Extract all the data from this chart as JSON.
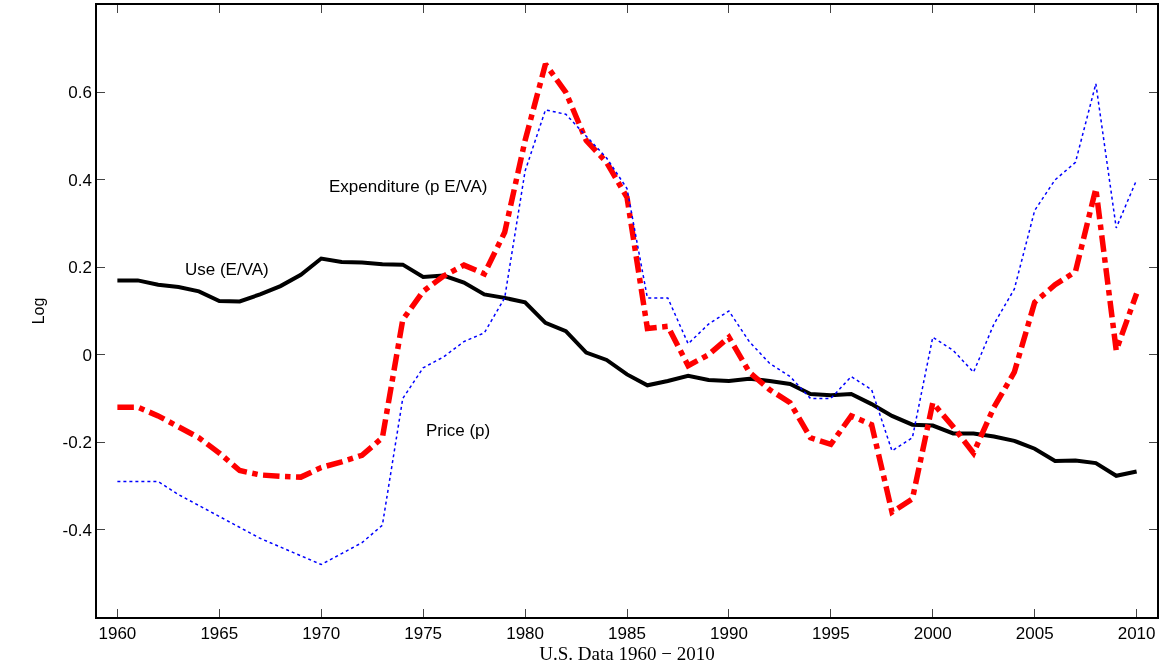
{
  "chart_data": {
    "type": "line",
    "xlabel": "U.S. Data 1960 − 2010",
    "ylabel": "Log",
    "x": [
      1960,
      1961,
      1962,
      1963,
      1964,
      1965,
      1966,
      1967,
      1968,
      1969,
      1970,
      1971,
      1972,
      1973,
      1974,
      1975,
      1976,
      1977,
      1978,
      1979,
      1980,
      1981,
      1982,
      1983,
      1984,
      1985,
      1986,
      1987,
      1988,
      1989,
      1990,
      1991,
      1992,
      1993,
      1994,
      1995,
      1996,
      1997,
      1998,
      1999,
      2000,
      2001,
      2002,
      2003,
      2004,
      2005,
      2006,
      2007,
      2008,
      2009,
      2010
    ],
    "series": [
      {
        "name": "Use (E/VA)",
        "color": "#000000",
        "line_style": "solid",
        "values": [
          0.17,
          0.17,
          0.16,
          0.155,
          0.145,
          0.123,
          0.122,
          0.138,
          0.157,
          0.183,
          0.22,
          0.212,
          0.211,
          0.207,
          0.206,
          0.178,
          0.181,
          0.165,
          0.138,
          0.13,
          0.12,
          0.073,
          0.054,
          0.005,
          -0.012,
          -0.045,
          -0.07,
          -0.06,
          -0.048,
          -0.058,
          -0.06,
          -0.055,
          -0.06,
          -0.067,
          -0.09,
          -0.093,
          -0.09,
          -0.113,
          -0.14,
          -0.16,
          -0.162,
          -0.18,
          -0.18,
          -0.187,
          -0.197,
          -0.215,
          -0.243,
          -0.242,
          -0.248,
          -0.277,
          -0.267
        ]
      },
      {
        "name": "Expenditure (p E/VA)",
        "color": "#ff0000",
        "line_style": "dashdot",
        "values": [
          -0.12,
          -0.12,
          -0.14,
          -0.165,
          -0.19,
          -0.225,
          -0.265,
          -0.275,
          -0.278,
          -0.28,
          -0.258,
          -0.245,
          -0.23,
          -0.19,
          0.08,
          0.145,
          0.18,
          0.205,
          0.185,
          0.28,
          0.49,
          0.665,
          0.6,
          0.49,
          0.44,
          0.36,
          0.06,
          0.065,
          -0.025,
          0.0,
          0.04,
          -0.04,
          -0.08,
          -0.11,
          -0.19,
          -0.205,
          -0.14,
          -0.16,
          -0.36,
          -0.33,
          -0.11,
          -0.165,
          -0.225,
          -0.12,
          -0.04,
          0.12,
          0.16,
          0.19,
          0.38,
          0.01,
          0.14
        ]
      },
      {
        "name": "Price (p)",
        "color": "#0000ff",
        "line_style": "dotted",
        "values": [
          -0.29,
          -0.29,
          -0.29,
          -0.32,
          -0.345,
          -0.37,
          -0.395,
          -0.42,
          -0.44,
          -0.46,
          -0.48,
          -0.455,
          -0.43,
          -0.39,
          -0.1,
          -0.03,
          -0.005,
          0.03,
          0.05,
          0.13,
          0.42,
          0.56,
          0.55,
          0.5,
          0.45,
          0.38,
          0.13,
          0.13,
          0.025,
          0.07,
          0.1,
          0.03,
          -0.02,
          -0.05,
          -0.1,
          -0.1,
          -0.05,
          -0.08,
          -0.22,
          -0.19,
          0.04,
          0.01,
          -0.04,
          0.07,
          0.15,
          0.33,
          0.4,
          0.44,
          0.62,
          0.29,
          0.4
        ]
      }
    ],
    "xlim": [
      1959,
      2011
    ],
    "xticks": [
      1960,
      1965,
      1970,
      1975,
      1980,
      1985,
      1990,
      1995,
      2000,
      2005,
      2010
    ],
    "ylim": [
      -0.6,
      0.8
    ],
    "yticks": [
      -0.4,
      -0.2,
      0,
      0.2,
      0.4,
      0.6
    ],
    "grid": false,
    "legend": false,
    "marker": "none"
  }
}
